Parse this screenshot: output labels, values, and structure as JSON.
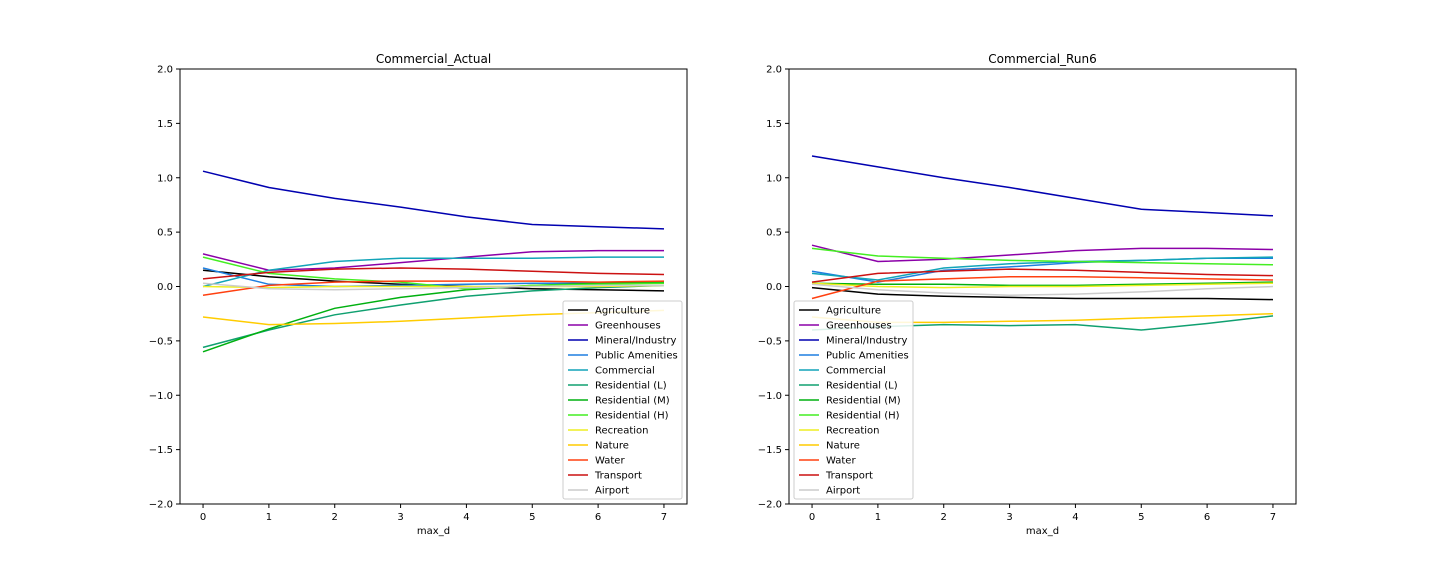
{
  "chart_data": [
    {
      "type": "line",
      "title": "Commercial_Actual",
      "xlabel": "max_d",
      "ylabel": "",
      "xlim": [
        -0.35,
        7.35
      ],
      "ylim": [
        -2.0,
        2.0
      ],
      "xticks": [
        "0",
        "1",
        "2",
        "3",
        "4",
        "5",
        "6",
        "7"
      ],
      "yticks": [
        "2.0",
        "1.5",
        "1.0",
        "0.5",
        "0.0",
        "−0.5",
        "−1.0",
        "−1.5",
        "−2.0"
      ],
      "grid": false,
      "legend_position": "lower-right",
      "x": [
        0,
        1,
        2,
        3,
        4,
        5,
        6,
        7
      ],
      "series": [
        {
          "name": "Agriculture",
          "color": "#000000",
          "values": [
            0.15,
            0.09,
            0.05,
            0.02,
            0.0,
            -0.02,
            -0.03,
            -0.04
          ]
        },
        {
          "name": "Greenhouses",
          "color": "#8b00a8",
          "values": [
            0.3,
            0.15,
            0.17,
            0.22,
            0.27,
            0.32,
            0.33,
            0.33
          ]
        },
        {
          "name": "Mineral/Industry",
          "color": "#0000b0",
          "values": [
            1.06,
            0.91,
            0.81,
            0.73,
            0.64,
            0.57,
            0.55,
            0.53
          ]
        },
        {
          "name": "Public Amenities",
          "color": "#1e7fe0",
          "values": [
            0.17,
            0.02,
            0.0,
            0.01,
            0.02,
            0.03,
            0.03,
            0.04
          ]
        },
        {
          "name": "Commercial",
          "color": "#12a4b8",
          "values": [
            0.0,
            0.15,
            0.23,
            0.26,
            0.26,
            0.26,
            0.27,
            0.27
          ]
        },
        {
          "name": "Residential (L)",
          "color": "#10a070",
          "values": [
            -0.56,
            -0.4,
            -0.26,
            -0.17,
            -0.09,
            -0.04,
            -0.01,
            0.01
          ]
        },
        {
          "name": "Residential (M)",
          "color": "#00b010",
          "values": [
            -0.6,
            -0.39,
            -0.2,
            -0.1,
            -0.03,
            0.01,
            0.03,
            0.04
          ]
        },
        {
          "name": "Residential (H)",
          "color": "#44ee22",
          "values": [
            0.27,
            0.12,
            0.07,
            0.04,
            -0.02,
            0.01,
            0.02,
            0.03
          ]
        },
        {
          "name": "Recreation",
          "color": "#eeee22",
          "values": [
            0.0,
            -0.01,
            0.0,
            0.0,
            0.0,
            0.0,
            0.0,
            0.01
          ]
        },
        {
          "name": "Nature",
          "color": "#ffcc00",
          "values": [
            -0.28,
            -0.35,
            -0.34,
            -0.32,
            -0.29,
            -0.26,
            -0.24,
            -0.22
          ]
        },
        {
          "name": "Water",
          "color": "#ff4010",
          "values": [
            -0.08,
            0.01,
            0.04,
            0.05,
            0.05,
            0.05,
            0.04,
            0.05
          ]
        },
        {
          "name": "Transport",
          "color": "#cc1111",
          "values": [
            0.07,
            0.13,
            0.16,
            0.17,
            0.16,
            0.14,
            0.12,
            0.11
          ]
        },
        {
          "name": "Airport",
          "color": "#cccccc",
          "values": [
            0.03,
            -0.02,
            -0.03,
            -0.02,
            -0.01,
            0.0,
            0.01,
            0.01
          ]
        }
      ]
    },
    {
      "type": "line",
      "title": "Commercial_Run6",
      "xlabel": "max_d",
      "ylabel": "",
      "xlim": [
        -0.35,
        7.35
      ],
      "ylim": [
        -2.0,
        2.0
      ],
      "xticks": [
        "0",
        "1",
        "2",
        "3",
        "4",
        "5",
        "6",
        "7"
      ],
      "yticks": [
        "2.0",
        "1.5",
        "1.0",
        "0.5",
        "0.0",
        "−0.5",
        "−1.0",
        "−1.5",
        "−2.0"
      ],
      "grid": false,
      "legend_position": "lower-left",
      "x": [
        0,
        1,
        2,
        3,
        4,
        5,
        6,
        7
      ],
      "series": [
        {
          "name": "Agriculture",
          "color": "#000000",
          "values": [
            -0.01,
            -0.07,
            -0.09,
            -0.1,
            -0.11,
            -0.11,
            -0.11,
            -0.12
          ]
        },
        {
          "name": "Greenhouses",
          "color": "#8b00a8",
          "values": [
            0.38,
            0.23,
            0.25,
            0.29,
            0.33,
            0.35,
            0.35,
            0.34
          ]
        },
        {
          "name": "Mineral/Industry",
          "color": "#0000b0",
          "values": [
            1.2,
            1.1,
            1.0,
            0.91,
            0.81,
            0.71,
            0.68,
            0.65
          ]
        },
        {
          "name": "Public Amenities",
          "color": "#1e7fe0",
          "values": [
            0.14,
            0.04,
            0.15,
            0.18,
            0.22,
            0.24,
            0.26,
            0.26
          ]
        },
        {
          "name": "Commercial",
          "color": "#12a4b8",
          "values": [
            0.12,
            0.06,
            0.17,
            0.21,
            0.23,
            0.24,
            0.26,
            0.27
          ]
        },
        {
          "name": "Residential (L)",
          "color": "#10a070",
          "values": [
            -0.4,
            -0.37,
            -0.35,
            -0.36,
            -0.35,
            -0.4,
            -0.34,
            -0.27
          ]
        },
        {
          "name": "Residential (M)",
          "color": "#00b010",
          "values": [
            0.03,
            0.02,
            0.02,
            0.01,
            0.01,
            0.02,
            0.03,
            0.04
          ]
        },
        {
          "name": "Residential (H)",
          "color": "#44ee22",
          "values": [
            0.35,
            0.28,
            0.26,
            0.24,
            0.23,
            0.22,
            0.21,
            0.2
          ]
        },
        {
          "name": "Recreation",
          "color": "#eeee22",
          "values": [
            0.03,
            0.0,
            -0.01,
            0.0,
            0.0,
            0.01,
            0.02,
            0.03
          ]
        },
        {
          "name": "Nature",
          "color": "#ffcc00",
          "values": [
            -0.28,
            -0.33,
            -0.33,
            -0.32,
            -0.31,
            -0.29,
            -0.27,
            -0.25
          ]
        },
        {
          "name": "Water",
          "color": "#ff4010",
          "values": [
            -0.11,
            0.05,
            0.07,
            0.09,
            0.09,
            0.08,
            0.07,
            0.06
          ]
        },
        {
          "name": "Transport",
          "color": "#cc1111",
          "values": [
            0.04,
            0.12,
            0.14,
            0.16,
            0.15,
            0.13,
            0.11,
            0.1
          ]
        },
        {
          "name": "Airport",
          "color": "#cccccc",
          "values": [
            0.02,
            -0.03,
            -0.06,
            -0.08,
            -0.07,
            -0.05,
            -0.02,
            0.0
          ]
        }
      ]
    }
  ]
}
